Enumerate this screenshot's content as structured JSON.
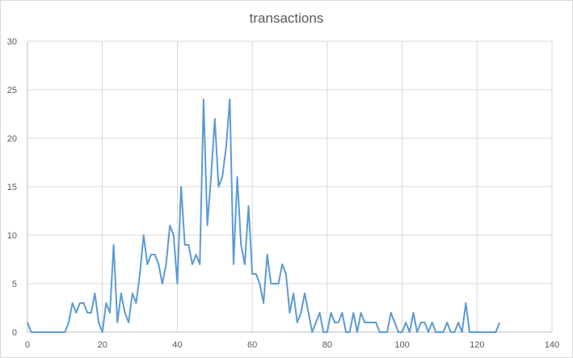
{
  "chart_data": {
    "type": "line",
    "title": "transactions",
    "xlabel": "",
    "ylabel": "",
    "xlim": [
      0,
      140
    ],
    "ylim": [
      0,
      30
    ],
    "x_ticks": [
      0,
      20,
      40,
      60,
      80,
      100,
      120,
      140
    ],
    "y_ticks": [
      0,
      5,
      10,
      15,
      20,
      25,
      30
    ],
    "grid": true,
    "legend": "none",
    "color": "#5b9bd5",
    "x": [
      0,
      1,
      2,
      3,
      4,
      5,
      6,
      7,
      8,
      9,
      10,
      11,
      12,
      13,
      14,
      15,
      16,
      17,
      18,
      19,
      20,
      21,
      22,
      23,
      24,
      25,
      26,
      27,
      28,
      29,
      30,
      31,
      32,
      33,
      34,
      35,
      36,
      37,
      38,
      39,
      40,
      41,
      42,
      43,
      44,
      45,
      46,
      47,
      48,
      49,
      50,
      51,
      52,
      53,
      54,
      55,
      56,
      57,
      58,
      59,
      60,
      61,
      62,
      63,
      64,
      65,
      66,
      67,
      68,
      69,
      70,
      71,
      72,
      73,
      74,
      75,
      76,
      77,
      78,
      79,
      80,
      81,
      82,
      83,
      84,
      85,
      86,
      87,
      88,
      89,
      90,
      91,
      92,
      93,
      94,
      95,
      96,
      97,
      98,
      99,
      100,
      101,
      102,
      103,
      104,
      105,
      106,
      107,
      108,
      109,
      110,
      111,
      112,
      113,
      114,
      115,
      116,
      117,
      118,
      119,
      120,
      121,
      122,
      123,
      124,
      125,
      126
    ],
    "values": [
      1,
      0,
      0,
      0,
      0,
      0,
      0,
      0,
      0,
      0,
      0,
      1,
      3,
      2,
      3,
      3,
      2,
      2,
      4,
      1,
      0,
      3,
      2,
      9,
      1,
      4,
      2,
      1,
      4,
      3,
      6,
      10,
      7,
      8,
      8,
      7,
      5,
      7,
      11,
      10,
      5,
      15,
      9,
      9,
      7,
      8,
      7,
      24,
      11,
      16,
      22,
      15,
      16,
      19,
      24,
      7,
      16,
      9,
      7,
      13,
      6,
      6,
      5,
      3,
      8,
      5,
      5,
      5,
      7,
      6,
      2,
      4,
      1,
      2,
      4,
      2,
      0,
      1,
      2,
      0,
      0,
      2,
      1,
      1,
      2,
      0,
      0,
      2,
      0,
      2,
      1,
      1,
      1,
      1,
      0,
      0,
      0,
      2,
      1,
      0,
      0,
      1,
      0,
      2,
      0,
      1,
      1,
      0,
      1,
      0,
      0,
      0,
      1,
      0,
      0,
      1,
      0,
      3,
      0,
      0,
      0,
      0,
      0,
      0,
      0,
      0,
      1
    ]
  }
}
